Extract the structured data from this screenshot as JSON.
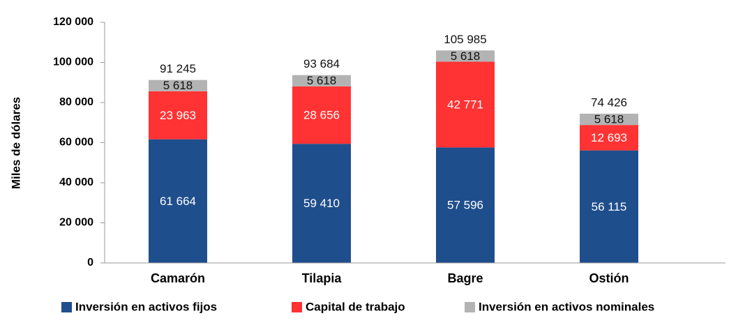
{
  "chart_data": {
    "type": "stacked_bar",
    "y_label": "Miles de dólares",
    "categories": [
      "Camarón",
      "Tilapia",
      "Bagre",
      "Ostión"
    ],
    "series": [
      {
        "name": "Inversión en activos fijos",
        "color": "#1f4e8c",
        "values": [
          61664,
          59410,
          57596,
          56115
        ],
        "value_labels": [
          "61 664",
          "59 410",
          "57 596",
          "56 115"
        ]
      },
      {
        "name": "Capital de trabajo",
        "color": "#ff3333",
        "values": [
          23963,
          28656,
          42771,
          12693
        ],
        "value_labels": [
          "23 963",
          "28 656",
          "42 771",
          "12 693"
        ]
      },
      {
        "name": "Inversión en activos nominales",
        "color": "#b3b3b3",
        "values": [
          5618,
          5618,
          5618,
          5618
        ],
        "value_labels": [
          "5 618",
          "5 618",
          "5 618",
          "5 618"
        ]
      }
    ],
    "totals": [
      91245,
      93684,
      105985,
      74426
    ],
    "total_labels": [
      "91 245",
      "93 684",
      "105 985",
      "74 426"
    ],
    "ylim": [
      0,
      120000
    ],
    "yticks": [
      0,
      {
        "value": 20000,
        "label": "20 000"
      },
      {
        "value": 40000,
        "label": "40 000"
      },
      {
        "value": 60000,
        "label": "60 000"
      },
      {
        "value": 80000,
        "label": "80 000"
      },
      {
        "value": 100000,
        "label": "100 000"
      },
      {
        "value": 120000,
        "label": "120 000"
      }
    ],
    "legend": "bottom"
  }
}
